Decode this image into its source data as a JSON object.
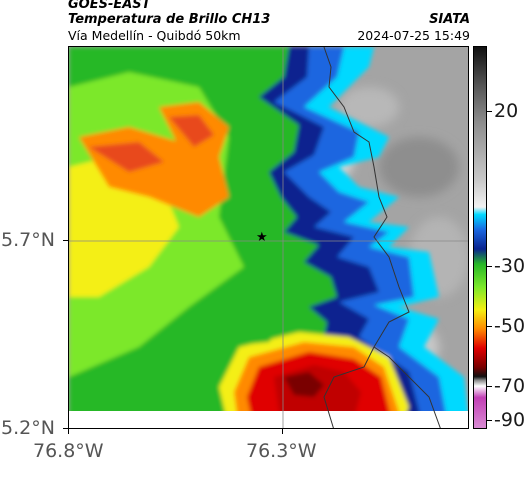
{
  "header": {
    "title": "GOES-EAST",
    "subtitle": "Temperatura de Brillo CH13",
    "region": "Vía Medellín - Quibdó 50km",
    "source": "SIATA",
    "datetime": "2024-07-25 15:49"
  },
  "map": {
    "lat_labels": [
      "5.7°N",
      "5.2°N"
    ],
    "lon_labels": [
      "76.8°W",
      "76.3°W"
    ],
    "lat_values": [
      5.7,
      5.2
    ],
    "lon_values": [
      -76.8,
      -76.3
    ],
    "marker": {
      "symbol": "★",
      "lat": 5.7,
      "lon": -76.35
    }
  },
  "colorbar": {
    "labels": [
      "20",
      "-30",
      "-50",
      "-70",
      "-90"
    ],
    "colors": {
      "warm": "#9a9a9a",
      "cyan": "#00d9ff",
      "blue": "#1a66e0",
      "navy": "#0a238f",
      "green": "#27b827",
      "lime": "#7be82a",
      "yellow": "#f4ef12",
      "orange": "#ff8a00",
      "red": "#e00000",
      "darkred": "#7a0000",
      "magenta": "#c23fb5"
    }
  }
}
